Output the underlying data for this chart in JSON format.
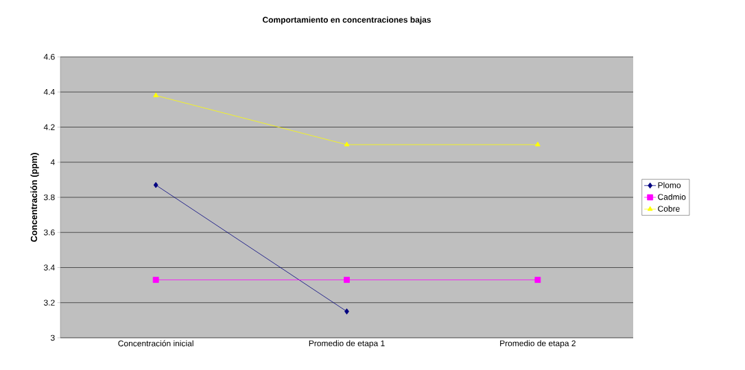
{
  "chart_data": {
    "type": "line",
    "title": "Comportamiento en concentraciones bajas",
    "ylabel": "Concentración (ppm)",
    "categories": [
      "Concentración inicial",
      "Promedio de etapa 1",
      "Promedio de etapa 2"
    ],
    "series": [
      {
        "name": "Plomo",
        "color": "#000080",
        "marker": "diamond",
        "values": [
          3.87,
          3.15,
          null
        ]
      },
      {
        "name": "Cadmio",
        "color": "#ff00ff",
        "marker": "square",
        "values": [
          3.33,
          3.33,
          3.33
        ]
      },
      {
        "name": "Cobre",
        "color": "#ffff00",
        "marker": "triangle",
        "values": [
          4.38,
          4.1,
          4.1
        ]
      }
    ],
    "ylim": [
      3,
      4.6
    ],
    "yticks": [
      3,
      3.2,
      3.4,
      3.6,
      3.8,
      4,
      4.2,
      4.4,
      4.6
    ],
    "grid": "y",
    "legend": "right",
    "line_style": "solid"
  }
}
